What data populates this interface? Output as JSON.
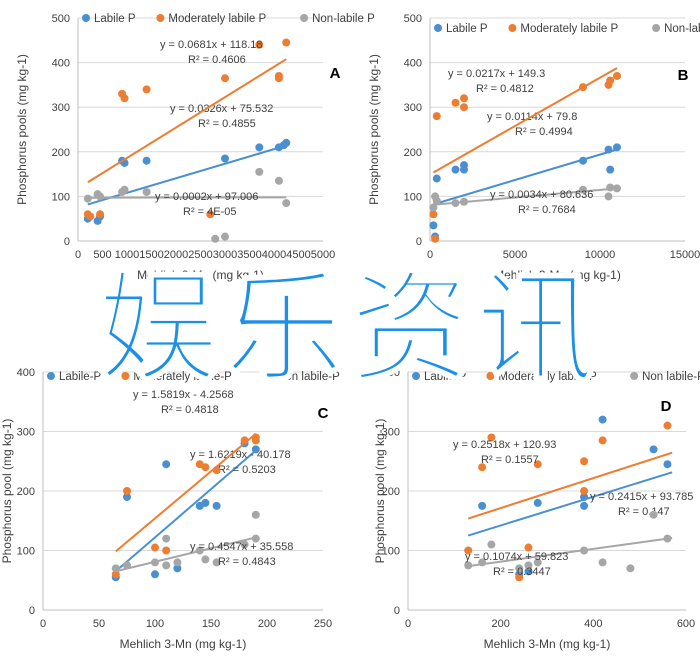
{
  "overlay_text": "娱乐资讯",
  "colors": {
    "labile": "#4a90d0",
    "moderate": "#ed7d31",
    "nonlabile": "#a6a6a6",
    "grid": "#d9d9d9",
    "text": "#404040"
  },
  "chart_data": [
    {
      "id": "A",
      "type": "scatter",
      "panel_label": "A",
      "xlabel": "Mehlich 3-Mn (mg kg-1)",
      "ylabel": "Phosphorus pools (mg kg-1)",
      "xlim": [
        0,
        5000
      ],
      "ylim": [
        0,
        500
      ],
      "xticks": [
        0,
        500,
        1000,
        1500,
        2000,
        2500,
        3000,
        3500,
        4000,
        4500,
        5000
      ],
      "yticks": [
        0,
        100,
        200,
        300,
        400,
        500
      ],
      "legend": [
        "Labile P",
        "Moderately labile P",
        "Non-labile P"
      ],
      "series": [
        {
          "name": "Labile P",
          "color_key": "labile",
          "points": [
            [
              200,
              50
            ],
            [
              400,
              45
            ],
            [
              450,
              55
            ],
            [
              900,
              180
            ],
            [
              950,
              175
            ],
            [
              1400,
              180
            ],
            [
              3000,
              185
            ],
            [
              3700,
              210
            ],
            [
              4100,
              210
            ],
            [
              4200,
              215
            ],
            [
              4250,
              220
            ]
          ],
          "trend": [
            0.0326,
            75.532
          ],
          "trend_range": [
            200,
            4250
          ],
          "equation": "y = 0.0326x + 75.532",
          "r2": "R² = 0.4855"
        },
        {
          "name": "Moderately labile P",
          "color_key": "moderate",
          "points": [
            [
              200,
              60
            ],
            [
              250,
              55
            ],
            [
              450,
              60
            ],
            [
              900,
              330
            ],
            [
              950,
              320
            ],
            [
              1400,
              340
            ],
            [
              2700,
              60
            ],
            [
              3000,
              365
            ],
            [
              3700,
              440
            ],
            [
              4100,
              370
            ],
            [
              4100,
              365
            ],
            [
              4250,
              445
            ]
          ],
          "trend": [
            0.0681,
            118.18
          ],
          "trend_range": [
            200,
            4250
          ],
          "equation": "y = 0.0681x + 118.18",
          "r2": "R² = 0.4606"
        },
        {
          "name": "Non-labile P",
          "color_key": "nonlabile",
          "points": [
            [
              200,
              95
            ],
            [
              400,
              105
            ],
            [
              450,
              100
            ],
            [
              900,
              110
            ],
            [
              950,
              115
            ],
            [
              1400,
              110
            ],
            [
              2800,
              5
            ],
            [
              3000,
              10
            ],
            [
              3700,
              155
            ],
            [
              4100,
              135
            ],
            [
              4250,
              85
            ]
          ],
          "trend": [
            0.0002,
            97.006
          ],
          "trend_range": [
            200,
            4250
          ],
          "equation": "y = 0.0002x + 97.006",
          "r2": "R² = 4E-05"
        }
      ]
    },
    {
      "id": "B",
      "type": "scatter",
      "panel_label": "B",
      "xlabel": "Mehlich 3-Mn (mg kg-1)",
      "ylabel": "Phosphorus pools (mg kg-1)",
      "xlim": [
        0,
        15000
      ],
      "ylim": [
        0,
        500
      ],
      "xticks": [
        0,
        5000,
        10000,
        15000
      ],
      "yticks": [
        0,
        100,
        200,
        300,
        400,
        500
      ],
      "legend": [
        "Labile P",
        "Moderately labile P",
        "Non-labile P"
      ],
      "series": [
        {
          "name": "Labile P",
          "color_key": "labile",
          "points": [
            [
              200,
              35
            ],
            [
              300,
              10
            ],
            [
              400,
              140
            ],
            [
              1500,
              160
            ],
            [
              2000,
              170
            ],
            [
              2000,
              160
            ],
            [
              9000,
              180
            ],
            [
              10500,
              205
            ],
            [
              10600,
              160
            ],
            [
              11000,
              210
            ]
          ],
          "trend": [
            0.0114,
            79.8
          ],
          "trend_range": [
            200,
            11000
          ],
          "equation": "y = 0.0114x + 79.8",
          "r2": "R² = 0.4994"
        },
        {
          "name": "Moderately labile P",
          "color_key": "moderate",
          "points": [
            [
              200,
              60
            ],
            [
              300,
              5
            ],
            [
              400,
              280
            ],
            [
              1500,
              310
            ],
            [
              2000,
              320
            ],
            [
              2000,
              300
            ],
            [
              9000,
              345
            ],
            [
              10500,
              350
            ],
            [
              10600,
              360
            ],
            [
              11000,
              370
            ]
          ],
          "trend": [
            0.0217,
            149.3
          ],
          "trend_range": [
            200,
            11000
          ],
          "equation": "y = 0.0217x + 149.3",
          "r2": "R² = 0.4812"
        },
        {
          "name": "Non-labile P",
          "color_key": "nonlabile",
          "points": [
            [
              200,
              75
            ],
            [
              300,
              100
            ],
            [
              400,
              90
            ],
            [
              1500,
              85
            ],
            [
              2000,
              88
            ],
            [
              9000,
              115
            ],
            [
              10500,
              100
            ],
            [
              10600,
              120
            ],
            [
              11000,
              118
            ]
          ],
          "trend": [
            0.0034,
            80.636
          ],
          "trend_range": [
            200,
            11000
          ],
          "equation": "y = 0.0034x + 80.636",
          "r2": "R² = 0.7684"
        }
      ]
    },
    {
      "id": "C",
      "type": "scatter",
      "panel_label": "C",
      "xlabel": "Mehlich 3-Mn (mg kg-1)",
      "ylabel": "Phosphorus pool (mg kg-1)",
      "xlim": [
        0,
        250
      ],
      "ylim": [
        0,
        400
      ],
      "xticks": [
        0,
        50,
        100,
        150,
        200,
        250
      ],
      "yticks": [
        0,
        100,
        200,
        300,
        400
      ],
      "legend": [
        "Labile-P",
        "Moderately labile-P",
        "Non labile-P"
      ],
      "series": [
        {
          "name": "Labile-P",
          "color_key": "labile",
          "points": [
            [
              65,
              55
            ],
            [
              75,
              190
            ],
            [
              100,
              60
            ],
            [
              110,
              245
            ],
            [
              120,
              70
            ],
            [
              140,
              175
            ],
            [
              145,
              180
            ],
            [
              155,
              175
            ],
            [
              180,
              280
            ],
            [
              190,
              270
            ]
          ],
          "trend": [
            1.6219,
            -40.178
          ],
          "trend_range": [
            65,
            190
          ],
          "equation": "y = 1.6219x - 40.178",
          "r2": "R² = 0.5203"
        },
        {
          "name": "Moderately labile-P",
          "color_key": "moderate",
          "points": [
            [
              65,
              60
            ],
            [
              75,
              200
            ],
            [
              100,
              105
            ],
            [
              110,
              100
            ],
            [
              140,
              245
            ],
            [
              145,
              240
            ],
            [
              155,
              235
            ],
            [
              180,
              285
            ],
            [
              190,
              290
            ],
            [
              190,
              285
            ]
          ],
          "trend": [
            1.5819,
            -4.2568
          ],
          "trend_range": [
            65,
            190
          ],
          "equation": "y = 1.5819x - 4.2568",
          "r2": "R² = 0.4818"
        },
        {
          "name": "Non labile-P",
          "color_key": "nonlabile",
          "points": [
            [
              65,
              70
            ],
            [
              75,
              75
            ],
            [
              100,
              80
            ],
            [
              110,
              120
            ],
            [
              110,
              75
            ],
            [
              120,
              80
            ],
            [
              140,
              100
            ],
            [
              145,
              85
            ],
            [
              155,
              80
            ],
            [
              180,
              110
            ],
            [
              190,
              160
            ],
            [
              190,
              120
            ]
          ],
          "trend": [
            0.4547,
            35.558
          ],
          "trend_range": [
            65,
            190
          ],
          "equation": "y = 0.4547x + 35.558",
          "r2": "R² = 0.4843"
        }
      ]
    },
    {
      "id": "D",
      "type": "scatter",
      "panel_label": "D",
      "xlabel": "Mehlich 3-Mn (mg kg-1)",
      "ylabel": "Phosphorus pool (mg kg-1)",
      "xlim": [
        0,
        600
      ],
      "ylim": [
        0,
        400
      ],
      "xticks": [
        0,
        200,
        400,
        600
      ],
      "yticks": [
        0,
        100,
        200,
        300,
        400
      ],
      "legend": [
        "Labile-P",
        "Moderately labile-P",
        "Non labile-P"
      ],
      "series": [
        {
          "name": "Labile-P",
          "color_key": "labile",
          "points": [
            [
              160,
              175
            ],
            [
              240,
              60
            ],
            [
              260,
              65
            ],
            [
              280,
              180
            ],
            [
              380,
              190
            ],
            [
              380,
              175
            ],
            [
              420,
              320
            ],
            [
              530,
              270
            ],
            [
              560,
              245
            ]
          ],
          "trend": [
            0.2415,
            93.785
          ],
          "trend_range": [
            130,
            570
          ],
          "equation": "y = 0.2415x + 93.785",
          "r2": "R² = 0.147"
        },
        {
          "name": "Moderately labile-P",
          "color_key": "moderate",
          "points": [
            [
              130,
              100
            ],
            [
              160,
              240
            ],
            [
              180,
              290
            ],
            [
              240,
              55
            ],
            [
              260,
              105
            ],
            [
              280,
              245
            ],
            [
              380,
              250
            ],
            [
              380,
              200
            ],
            [
              420,
              285
            ],
            [
              560,
              310
            ]
          ],
          "trend": [
            0.2518,
            120.93
          ],
          "trend_range": [
            130,
            570
          ],
          "equation": "y = 0.2518x + 120.93",
          "r2": "R² = 0.1557"
        },
        {
          "name": "Non labile-P",
          "color_key": "nonlabile",
          "points": [
            [
              130,
              75
            ],
            [
              160,
              80
            ],
            [
              180,
              110
            ],
            [
              240,
              70
            ],
            [
              260,
              75
            ],
            [
              280,
              80
            ],
            [
              380,
              100
            ],
            [
              420,
              80
            ],
            [
              480,
              70
            ],
            [
              530,
              160
            ],
            [
              560,
              120
            ]
          ],
          "trend": [
            0.1074,
            59.823
          ],
          "trend_range": [
            130,
            570
          ],
          "equation": "y = 0.1074x + 59.823",
          "r2": "R² = 0.3447"
        }
      ]
    }
  ]
}
